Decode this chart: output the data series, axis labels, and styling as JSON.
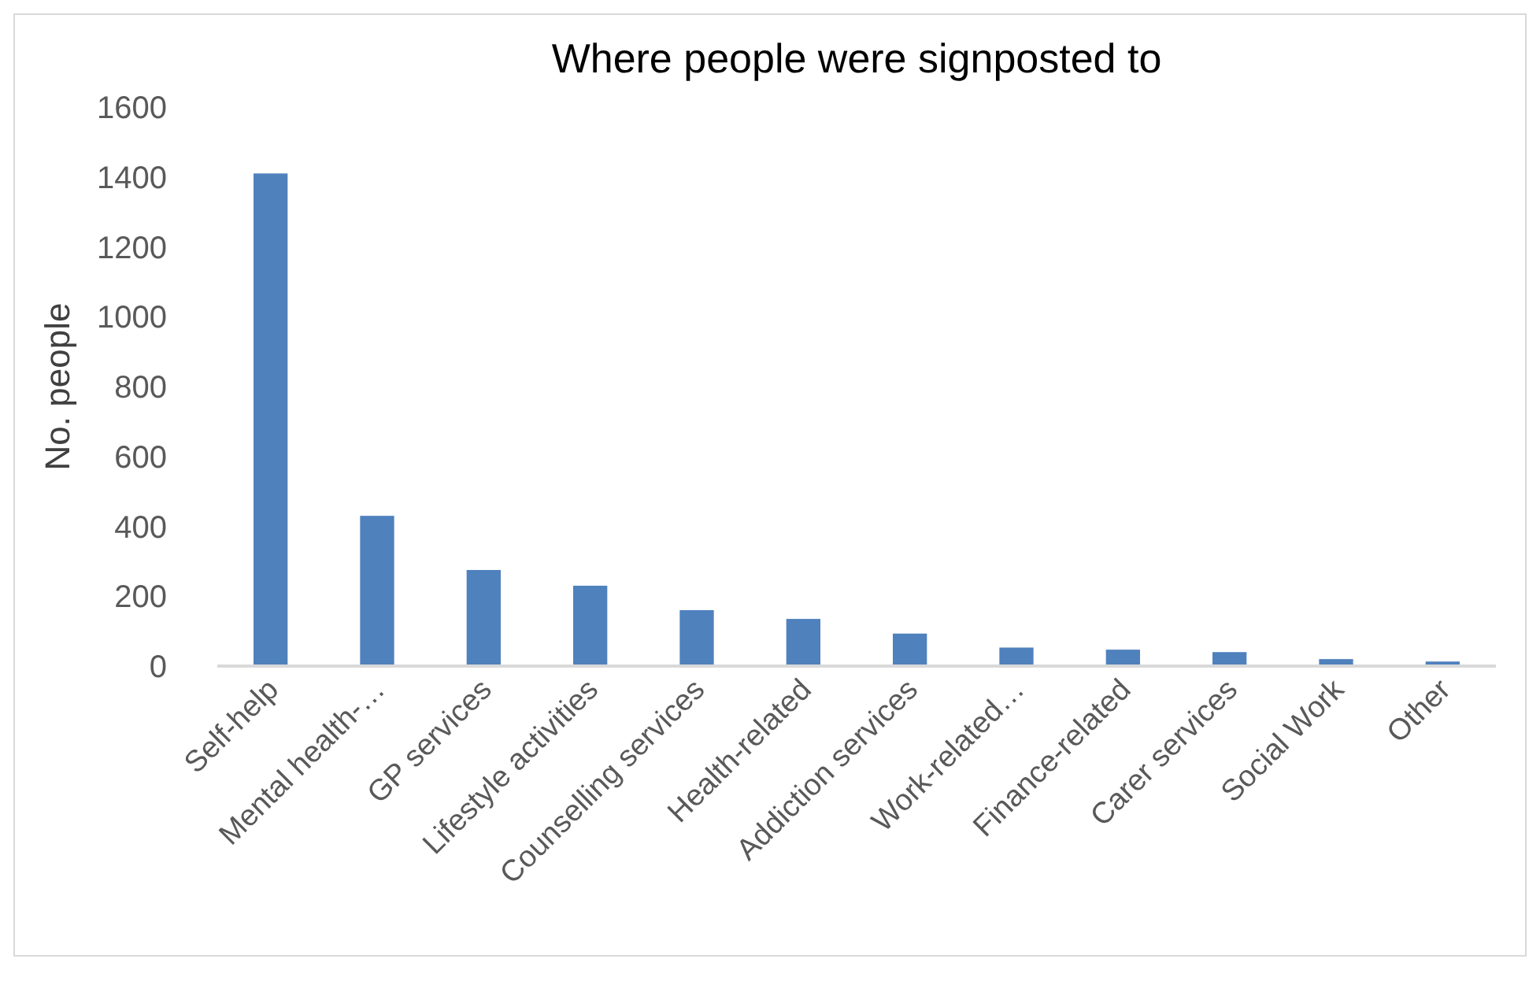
{
  "chart_data": {
    "type": "bar",
    "title": "Where people were signposted to",
    "ylabel": "No. people",
    "categories": [
      "Self-help",
      "Mental health-…",
      "GP services",
      "Lifestyle activities",
      "Counselling services",
      "Health-related",
      "Addiction services",
      "Work-related…",
      "Finance-related",
      "Carer services",
      "Social Work",
      "Other"
    ],
    "values": [
      1410,
      430,
      275,
      230,
      160,
      135,
      93,
      53,
      47,
      40,
      20,
      13
    ],
    "color": "#4f81bd",
    "ylim": [
      0,
      1600
    ],
    "yticks": [
      0,
      200,
      400,
      600,
      800,
      1000,
      1200,
      1400,
      1600
    ],
    "grid": false
  }
}
